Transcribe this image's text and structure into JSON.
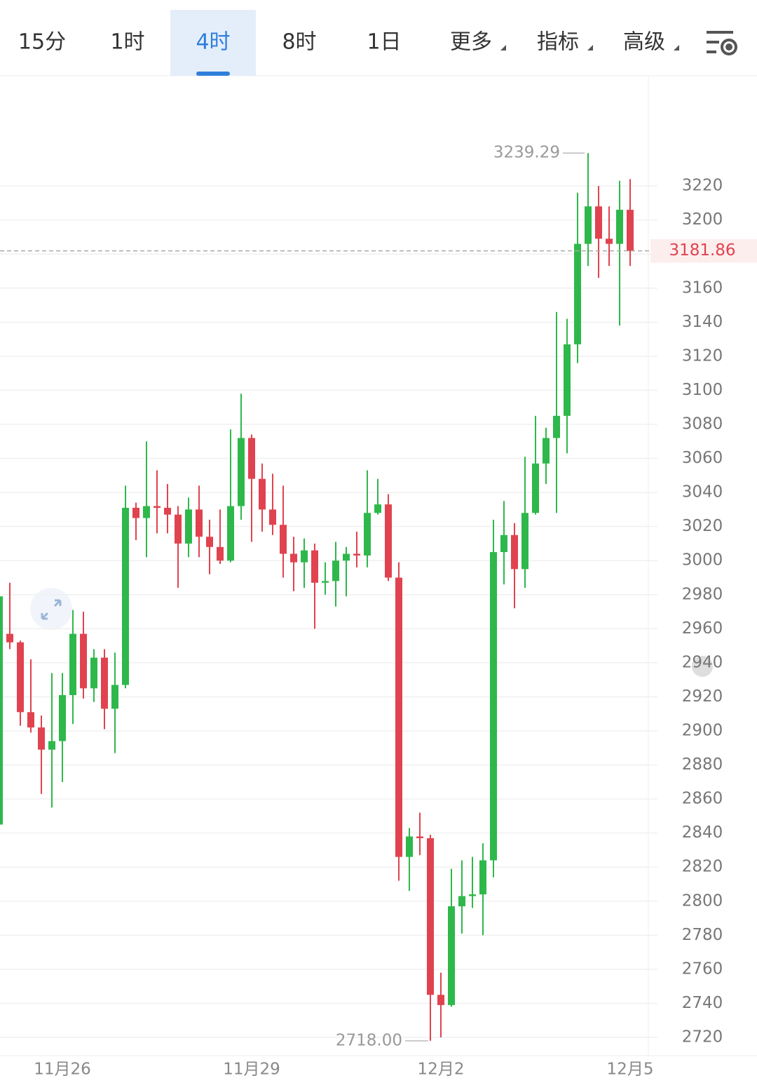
{
  "tabs": {
    "items": [
      "15分",
      "1时",
      "4时",
      "8时",
      "1日",
      "更多",
      "指标",
      "高级"
    ],
    "active": 2
  },
  "chart_data": {
    "type": "candlestick",
    "categories": [
      null,
      null,
      null,
      null,
      null,
      null,
      "11月26",
      null,
      null,
      null,
      null,
      null,
      null,
      null,
      null,
      null,
      null,
      null,
      null,
      null,
      null,
      null,
      null,
      null,
      "11月29",
      null,
      null,
      null,
      null,
      null,
      null,
      null,
      null,
      null,
      null,
      null,
      null,
      null,
      null,
      null,
      null,
      null,
      "12月2",
      null,
      null,
      null,
      null,
      null,
      null,
      null,
      null,
      null,
      null,
      null,
      null,
      null,
      null,
      null,
      null,
      null,
      "12月5"
    ],
    "open": [
      2845,
      2957,
      2952,
      2911,
      2902,
      2889,
      2894,
      2921,
      2957,
      2925,
      2943,
      2913,
      2927,
      3031,
      3025,
      3032,
      3031,
      3027,
      3010,
      3030,
      3014,
      3008,
      3000,
      3032,
      3072,
      3048,
      3030,
      3021,
      3004,
      2999,
      3006,
      2987,
      2988,
      3000,
      3004,
      3003,
      3028,
      3033,
      2990,
      2826,
      2838,
      2837,
      2745,
      2739,
      2797,
      2803,
      2804,
      2824,
      3005,
      3015,
      2995,
      3028,
      3057,
      3072,
      3085,
      3127,
      3186,
      3208,
      3189,
      3186,
      3206
    ],
    "high": [
      2982,
      2987,
      2953,
      2942,
      2909,
      2934,
      2934,
      2971,
      2970,
      2948,
      2948,
      2946,
      3044,
      3034,
      3070,
      3053,
      3045,
      3032,
      3037,
      3044,
      3024,
      3030,
      3077,
      3098,
      3074,
      3057,
      3051,
      3044,
      3014,
      3013,
      3010,
      2999,
      3011,
      3008,
      3017,
      3053,
      3048,
      3039,
      2999,
      2843,
      2852,
      2839,
      2758,
      2819,
      2824,
      2826,
      2834,
      3024,
      3035,
      3022,
      3061,
      3085,
      3078,
      3146,
      3142,
      3216,
      3239.29,
      3220,
      3208,
      3223,
      3224
    ],
    "low": [
      2843,
      2948,
      2903,
      2899,
      2863,
      2855,
      2870,
      2904,
      2919,
      2917,
      2901,
      2887,
      2925,
      3012,
      3002,
      3016,
      3016,
      2984,
      3002,
      3002,
      2992,
      2998,
      2999,
      3024,
      3011,
      3017,
      3015,
      2990,
      2982,
      2984,
      2960,
      2980,
      2973,
      2979,
      2996,
      2996,
      3027,
      2988,
      2812,
      2806,
      2827,
      2718,
      2720,
      2738,
      2781,
      2796,
      2780,
      2814,
      2986,
      2972,
      2984,
      3027,
      3045,
      3028,
      3063,
      3116,
      3173,
      3166,
      3173,
      3138,
      3173
    ],
    "close": [
      2979,
      2952,
      2911,
      2902,
      2889,
      2894,
      2921,
      2957,
      2925,
      2943,
      2913,
      2927,
      3031,
      3025,
      3032,
      3031,
      3027,
      3010,
      3030,
      3014,
      3008,
      3000,
      3032,
      3072,
      3048,
      3030,
      3021,
      3004,
      2999,
      3006,
      2987,
      2988,
      3000,
      3004,
      3003,
      3028,
      3033,
      2990,
      2826,
      2838,
      2837,
      2745,
      2739,
      2797,
      2803,
      2804,
      2824,
      3005,
      3015,
      2995,
      3028,
      3057,
      3072,
      3085,
      3127,
      3186,
      3208,
      3189,
      3186,
      3206,
      3181.86
    ],
    "up_color": "#2eb84b",
    "down_color": "#e0434f",
    "ylim": [
      2709.3,
      3284.7
    ],
    "yticks": [
      2720,
      2740,
      2760,
      2780,
      2800,
      2820,
      2840,
      2860,
      2880,
      2900,
      2920,
      2940,
      2960,
      2980,
      3000,
      3020,
      3040,
      3060,
      3080,
      3100,
      3120,
      3140,
      3160,
      3180,
      3200,
      3220
    ],
    "grid": true,
    "max_label": 3239.29,
    "min_label": {
      "value": 2718,
      "label": "2718.00"
    },
    "last_price": 3181.86
  }
}
